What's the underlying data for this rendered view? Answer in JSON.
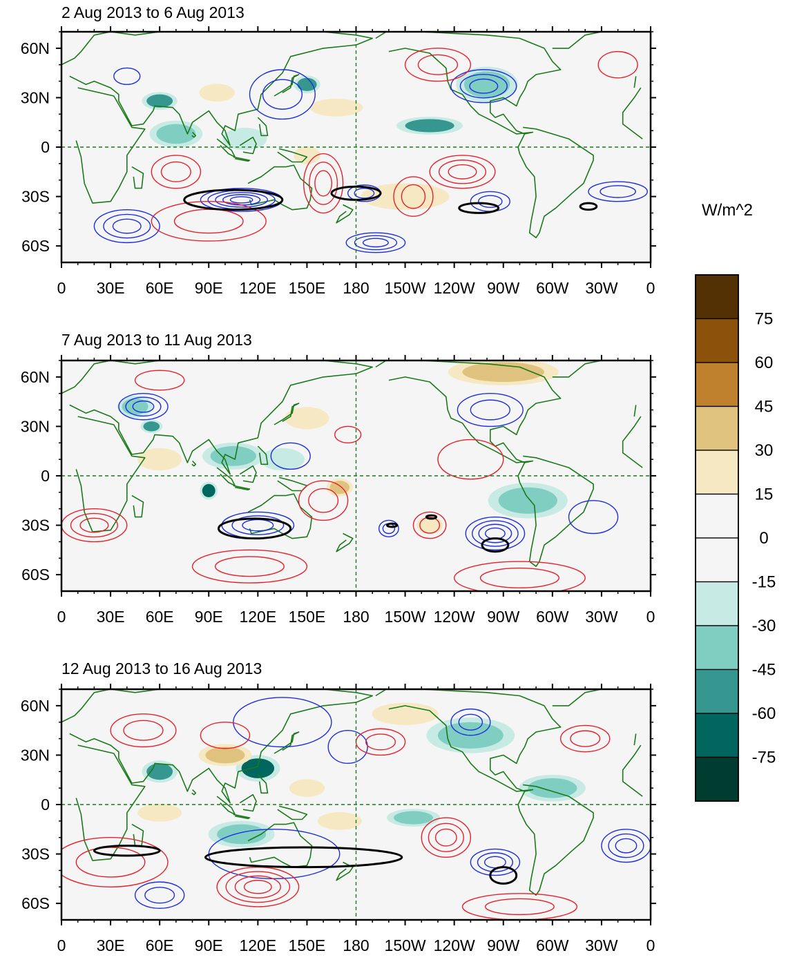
{
  "figure": {
    "colorbar_units": "W/m^2",
    "colorbar_levels": [
      "75",
      "60",
      "45",
      "30",
      "15",
      "0",
      "-15",
      "-30",
      "-45",
      "-60",
      "-75"
    ],
    "colorbar_colors": [
      "#543005",
      "#8c510a",
      "#bf812d",
      "#dfc27d",
      "#f6e8c3",
      "#f5f5f5",
      "#f5f5f5",
      "#c7eae5",
      "#80cdc1",
      "#35978f",
      "#01665e",
      "#003c30"
    ],
    "x_tick_labels": [
      "0",
      "30E",
      "60E",
      "90E",
      "120E",
      "150E",
      "180",
      "150W",
      "120W",
      "90W",
      "60W",
      "30W",
      "0"
    ],
    "y_tick_labels": [
      "60N",
      "30N",
      "0",
      "30S",
      "60S"
    ],
    "colors": {
      "land_outline": "#1a7a1a",
      "positive_contour": "#e8202a",
      "negative_contour": "#1c2ee0",
      "significance_contour": "#000000",
      "reference_line": "#1a7a1a",
      "ocean_background": "#f5f5f5"
    }
  },
  "panels": [
    {
      "title": "2 Aug 2013 to 6 Aug 2013"
    },
    {
      "title": "7 Aug 2013 to 11 Aug 2013"
    },
    {
      "title": "12 Aug 2013 to 16 Aug 2013"
    }
  ],
  "map_data": {
    "type": "contour_map",
    "projection": "cylindrical equidistant",
    "lon_range": [
      0,
      360
    ],
    "lat_range": [
      -70,
      70
    ],
    "x_ticks_deg": [
      0,
      30,
      60,
      90,
      120,
      150,
      180,
      210,
      240,
      270,
      300,
      330,
      360
    ],
    "y_ticks_deg": [
      60,
      30,
      0,
      -30,
      -60
    ],
    "shading_variable_units": "W/m^2",
    "shading_levels": [
      -75,
      -60,
      -45,
      -30,
      -15,
      0,
      15,
      30,
      45,
      60,
      75
    ],
    "panels": [
      {
        "title": "2 Aug 2013 to 6 Aug 2013",
        "blobs": [
          {
            "lon": 60,
            "lat": 28,
            "rx": 8,
            "ry": 4,
            "value": -50
          },
          {
            "lon": 150,
            "lat": 38,
            "rx": 6,
            "ry": 4,
            "value": -55
          },
          {
            "lon": 225,
            "lat": 13,
            "rx": 15,
            "ry": 4,
            "value": -50
          },
          {
            "lon": 260,
            "lat": 38,
            "rx": 14,
            "ry": 8,
            "value": -40
          },
          {
            "lon": 70,
            "lat": 8,
            "rx": 12,
            "ry": 6,
            "value": -30
          },
          {
            "lon": 112,
            "lat": 5,
            "rx": 10,
            "ry": 5,
            "value": -25
          },
          {
            "lon": 168,
            "lat": 24,
            "rx": 12,
            "ry": 4,
            "value": 30
          },
          {
            "lon": 210,
            "lat": -30,
            "rx": 20,
            "ry": 6,
            "value": 20
          },
          {
            "lon": 150,
            "lat": -5,
            "rx": 6,
            "ry": 4,
            "value": 25
          },
          {
            "lon": 95,
            "lat": 33,
            "rx": 8,
            "ry": 4,
            "value": 20
          }
        ],
        "contours": [
          {
            "lon": 110,
            "lat": -32,
            "rx": 25,
            "ry": 7,
            "sign": "negative",
            "rings": 5
          },
          {
            "lon": 40,
            "lat": -48,
            "rx": 20,
            "ry": 10,
            "sign": "negative",
            "rings": 3
          },
          {
            "lon": 192,
            "lat": -58,
            "rx": 18,
            "ry": 6,
            "sign": "negative",
            "rings": 3
          },
          {
            "lon": 185,
            "lat": -28,
            "rx": 10,
            "ry": 5,
            "sign": "negative",
            "rings": 2
          },
          {
            "lon": 262,
            "lat": -33,
            "rx": 12,
            "ry": 6,
            "sign": "negative",
            "rings": 2
          },
          {
            "lon": 258,
            "lat": 37,
            "rx": 20,
            "ry": 10,
            "sign": "negative",
            "rings": 3
          },
          {
            "lon": 135,
            "lat": 32,
            "rx": 20,
            "ry": 15,
            "sign": "negative",
            "rings": 2
          },
          {
            "lon": 40,
            "lat": 43,
            "rx": 8,
            "ry": 5,
            "sign": "negative",
            "rings": 1
          },
          {
            "lon": 340,
            "lat": -27,
            "rx": 18,
            "ry": 6,
            "sign": "negative",
            "rings": 2
          },
          {
            "lon": 160,
            "lat": -22,
            "rx": 12,
            "ry": 18,
            "sign": "positive",
            "rings": 3
          },
          {
            "lon": 70,
            "lat": -15,
            "rx": 15,
            "ry": 10,
            "sign": "positive",
            "rings": 2
          },
          {
            "lon": 215,
            "lat": -30,
            "rx": 12,
            "ry": 12,
            "sign": "positive",
            "rings": 2
          },
          {
            "lon": 245,
            "lat": -15,
            "rx": 20,
            "ry": 10,
            "sign": "positive",
            "rings": 3
          },
          {
            "lon": 90,
            "lat": -45,
            "rx": 35,
            "ry": 12,
            "sign": "positive",
            "rings": 2
          },
          {
            "lon": 230,
            "lat": 50,
            "rx": 20,
            "ry": 10,
            "sign": "positive",
            "rings": 2
          },
          {
            "lon": 340,
            "lat": 50,
            "rx": 12,
            "ry": 8,
            "sign": "positive",
            "rings": 1
          }
        ],
        "significance": [
          {
            "lon": 105,
            "lat": -32,
            "rx": 30,
            "ry": 6
          },
          {
            "lon": 180,
            "lat": -28,
            "rx": 15,
            "ry": 4
          },
          {
            "lon": 255,
            "lat": -37,
            "rx": 12,
            "ry": 3
          },
          {
            "lon": 322,
            "lat": -36,
            "rx": 5,
            "ry": 2
          }
        ]
      },
      {
        "title": "7 Aug 2013 to 11 Aug 2013",
        "blobs": [
          {
            "lon": 90,
            "lat": -9,
            "rx": 4,
            "ry": 4,
            "value": -70
          },
          {
            "lon": 45,
            "lat": 42,
            "rx": 8,
            "ry": 5,
            "value": -40
          },
          {
            "lon": 55,
            "lat": 30,
            "rx": 5,
            "ry": 3,
            "value": -45
          },
          {
            "lon": 105,
            "lat": 12,
            "rx": 14,
            "ry": 6,
            "value": -30
          },
          {
            "lon": 285,
            "lat": -15,
            "rx": 18,
            "ry": 8,
            "value": -30
          },
          {
            "lon": 135,
            "lat": 10,
            "rx": 10,
            "ry": 5,
            "value": -25
          },
          {
            "lon": 170,
            "lat": -7,
            "rx": 6,
            "ry": 4,
            "value": 45
          },
          {
            "lon": 270,
            "lat": 63,
            "rx": 25,
            "ry": 6,
            "value": 40
          },
          {
            "lon": 60,
            "lat": 10,
            "rx": 10,
            "ry": 5,
            "value": 25
          },
          {
            "lon": 225,
            "lat": -30,
            "rx": 6,
            "ry": 4,
            "value": 30
          },
          {
            "lon": 150,
            "lat": 35,
            "rx": 10,
            "ry": 5,
            "value": 20
          }
        ],
        "contours": [
          {
            "lon": 120,
            "lat": -30,
            "rx": 22,
            "ry": 8,
            "sign": "negative",
            "rings": 3
          },
          {
            "lon": 265,
            "lat": -35,
            "rx": 18,
            "ry": 10,
            "sign": "negative",
            "rings": 4
          },
          {
            "lon": 50,
            "lat": 42,
            "rx": 15,
            "ry": 8,
            "sign": "negative",
            "rings": 3
          },
          {
            "lon": 262,
            "lat": 40,
            "rx": 20,
            "ry": 10,
            "sign": "negative",
            "rings": 2
          },
          {
            "lon": 140,
            "lat": 12,
            "rx": 12,
            "ry": 8,
            "sign": "negative",
            "rings": 1
          },
          {
            "lon": 325,
            "lat": -25,
            "rx": 15,
            "ry": 10,
            "sign": "negative",
            "rings": 1
          },
          {
            "lon": 200,
            "lat": -32,
            "rx": 6,
            "ry": 5,
            "sign": "negative",
            "rings": 2
          },
          {
            "lon": 20,
            "lat": -30,
            "rx": 20,
            "ry": 10,
            "sign": "positive",
            "rings": 3
          },
          {
            "lon": 160,
            "lat": -15,
            "rx": 15,
            "ry": 12,
            "sign": "positive",
            "rings": 2
          },
          {
            "lon": 115,
            "lat": -55,
            "rx": 35,
            "ry": 10,
            "sign": "positive",
            "rings": 2
          },
          {
            "lon": 225,
            "lat": -30,
            "rx": 10,
            "ry": 8,
            "sign": "positive",
            "rings": 2
          },
          {
            "lon": 250,
            "lat": 10,
            "rx": 20,
            "ry": 12,
            "sign": "positive",
            "rings": 1
          },
          {
            "lon": 280,
            "lat": -62,
            "rx": 40,
            "ry": 10,
            "sign": "positive",
            "rings": 2
          },
          {
            "lon": 175,
            "lat": 25,
            "rx": 8,
            "ry": 5,
            "sign": "positive",
            "rings": 1
          },
          {
            "lon": 60,
            "lat": 58,
            "rx": 15,
            "ry": 6,
            "sign": "positive",
            "rings": 1
          }
        ],
        "significance": [
          {
            "lon": 118,
            "lat": -32,
            "rx": 22,
            "ry": 6
          },
          {
            "lon": 265,
            "lat": -42,
            "rx": 8,
            "ry": 4
          },
          {
            "lon": 202,
            "lat": -30,
            "rx": 3,
            "ry": 1
          },
          {
            "lon": 226,
            "lat": -25,
            "rx": 3,
            "ry": 1
          }
        ]
      },
      {
        "title": "12 Aug 2013 to 16 Aug 2013",
        "blobs": [
          {
            "lon": 120,
            "lat": 22,
            "rx": 10,
            "ry": 6,
            "value": -70
          },
          {
            "lon": 60,
            "lat": 20,
            "rx": 8,
            "ry": 5,
            "value": -45
          },
          {
            "lon": 110,
            "lat": -18,
            "rx": 15,
            "ry": 6,
            "value": -40
          },
          {
            "lon": 215,
            "lat": -8,
            "rx": 12,
            "ry": 4,
            "value": -40
          },
          {
            "lon": 300,
            "lat": 10,
            "rx": 15,
            "ry": 6,
            "value": -35
          },
          {
            "lon": 250,
            "lat": 42,
            "rx": 20,
            "ry": 8,
            "value": -30
          },
          {
            "lon": 100,
            "lat": 30,
            "rx": 12,
            "ry": 5,
            "value": 40
          },
          {
            "lon": 150,
            "lat": 10,
            "rx": 8,
            "ry": 4,
            "value": 30
          },
          {
            "lon": 60,
            "lat": -5,
            "rx": 10,
            "ry": 4,
            "value": 25
          },
          {
            "lon": 170,
            "lat": -10,
            "rx": 10,
            "ry": 4,
            "value": 25
          },
          {
            "lon": 210,
            "lat": 55,
            "rx": 15,
            "ry": 5,
            "value": 20
          }
        ],
        "contours": [
          {
            "lon": 265,
            "lat": -35,
            "rx": 15,
            "ry": 8,
            "sign": "negative",
            "rings": 3
          },
          {
            "lon": 130,
            "lat": -30,
            "rx": 40,
            "ry": 15,
            "sign": "negative",
            "rings": 1
          },
          {
            "lon": 60,
            "lat": -55,
            "rx": 15,
            "ry": 8,
            "sign": "negative",
            "rings": 2
          },
          {
            "lon": 135,
            "lat": 50,
            "rx": 30,
            "ry": 15,
            "sign": "negative",
            "rings": 1
          },
          {
            "lon": 345,
            "lat": -25,
            "rx": 15,
            "ry": 10,
            "sign": "negative",
            "rings": 3
          },
          {
            "lon": 250,
            "lat": 50,
            "rx": 12,
            "ry": 8,
            "sign": "negative",
            "rings": 2
          },
          {
            "lon": 175,
            "lat": 35,
            "rx": 12,
            "ry": 10,
            "sign": "negative",
            "rings": 1
          },
          {
            "lon": 120,
            "lat": -50,
            "rx": 25,
            "ry": 12,
            "sign": "positive",
            "rings": 4
          },
          {
            "lon": 235,
            "lat": -20,
            "rx": 15,
            "ry": 12,
            "sign": "positive",
            "rings": 3
          },
          {
            "lon": 30,
            "lat": -35,
            "rx": 35,
            "ry": 15,
            "sign": "positive",
            "rings": 2
          },
          {
            "lon": 195,
            "lat": 38,
            "rx": 15,
            "ry": 8,
            "sign": "positive",
            "rings": 2
          },
          {
            "lon": 280,
            "lat": -62,
            "rx": 35,
            "ry": 8,
            "sign": "positive",
            "rings": 2
          },
          {
            "lon": 320,
            "lat": 40,
            "rx": 15,
            "ry": 8,
            "sign": "positive",
            "rings": 2
          },
          {
            "lon": 50,
            "lat": 45,
            "rx": 20,
            "ry": 10,
            "sign": "positive",
            "rings": 2
          },
          {
            "lon": 100,
            "lat": 42,
            "rx": 15,
            "ry": 8,
            "sign": "positive",
            "rings": 1
          }
        ],
        "significance": [
          {
            "lon": 40,
            "lat": -28,
            "rx": 20,
            "ry": 3
          },
          {
            "lon": 148,
            "lat": -32,
            "rx": 60,
            "ry": 6
          },
          {
            "lon": 270,
            "lat": -43,
            "rx": 8,
            "ry": 5
          }
        ]
      }
    ]
  }
}
